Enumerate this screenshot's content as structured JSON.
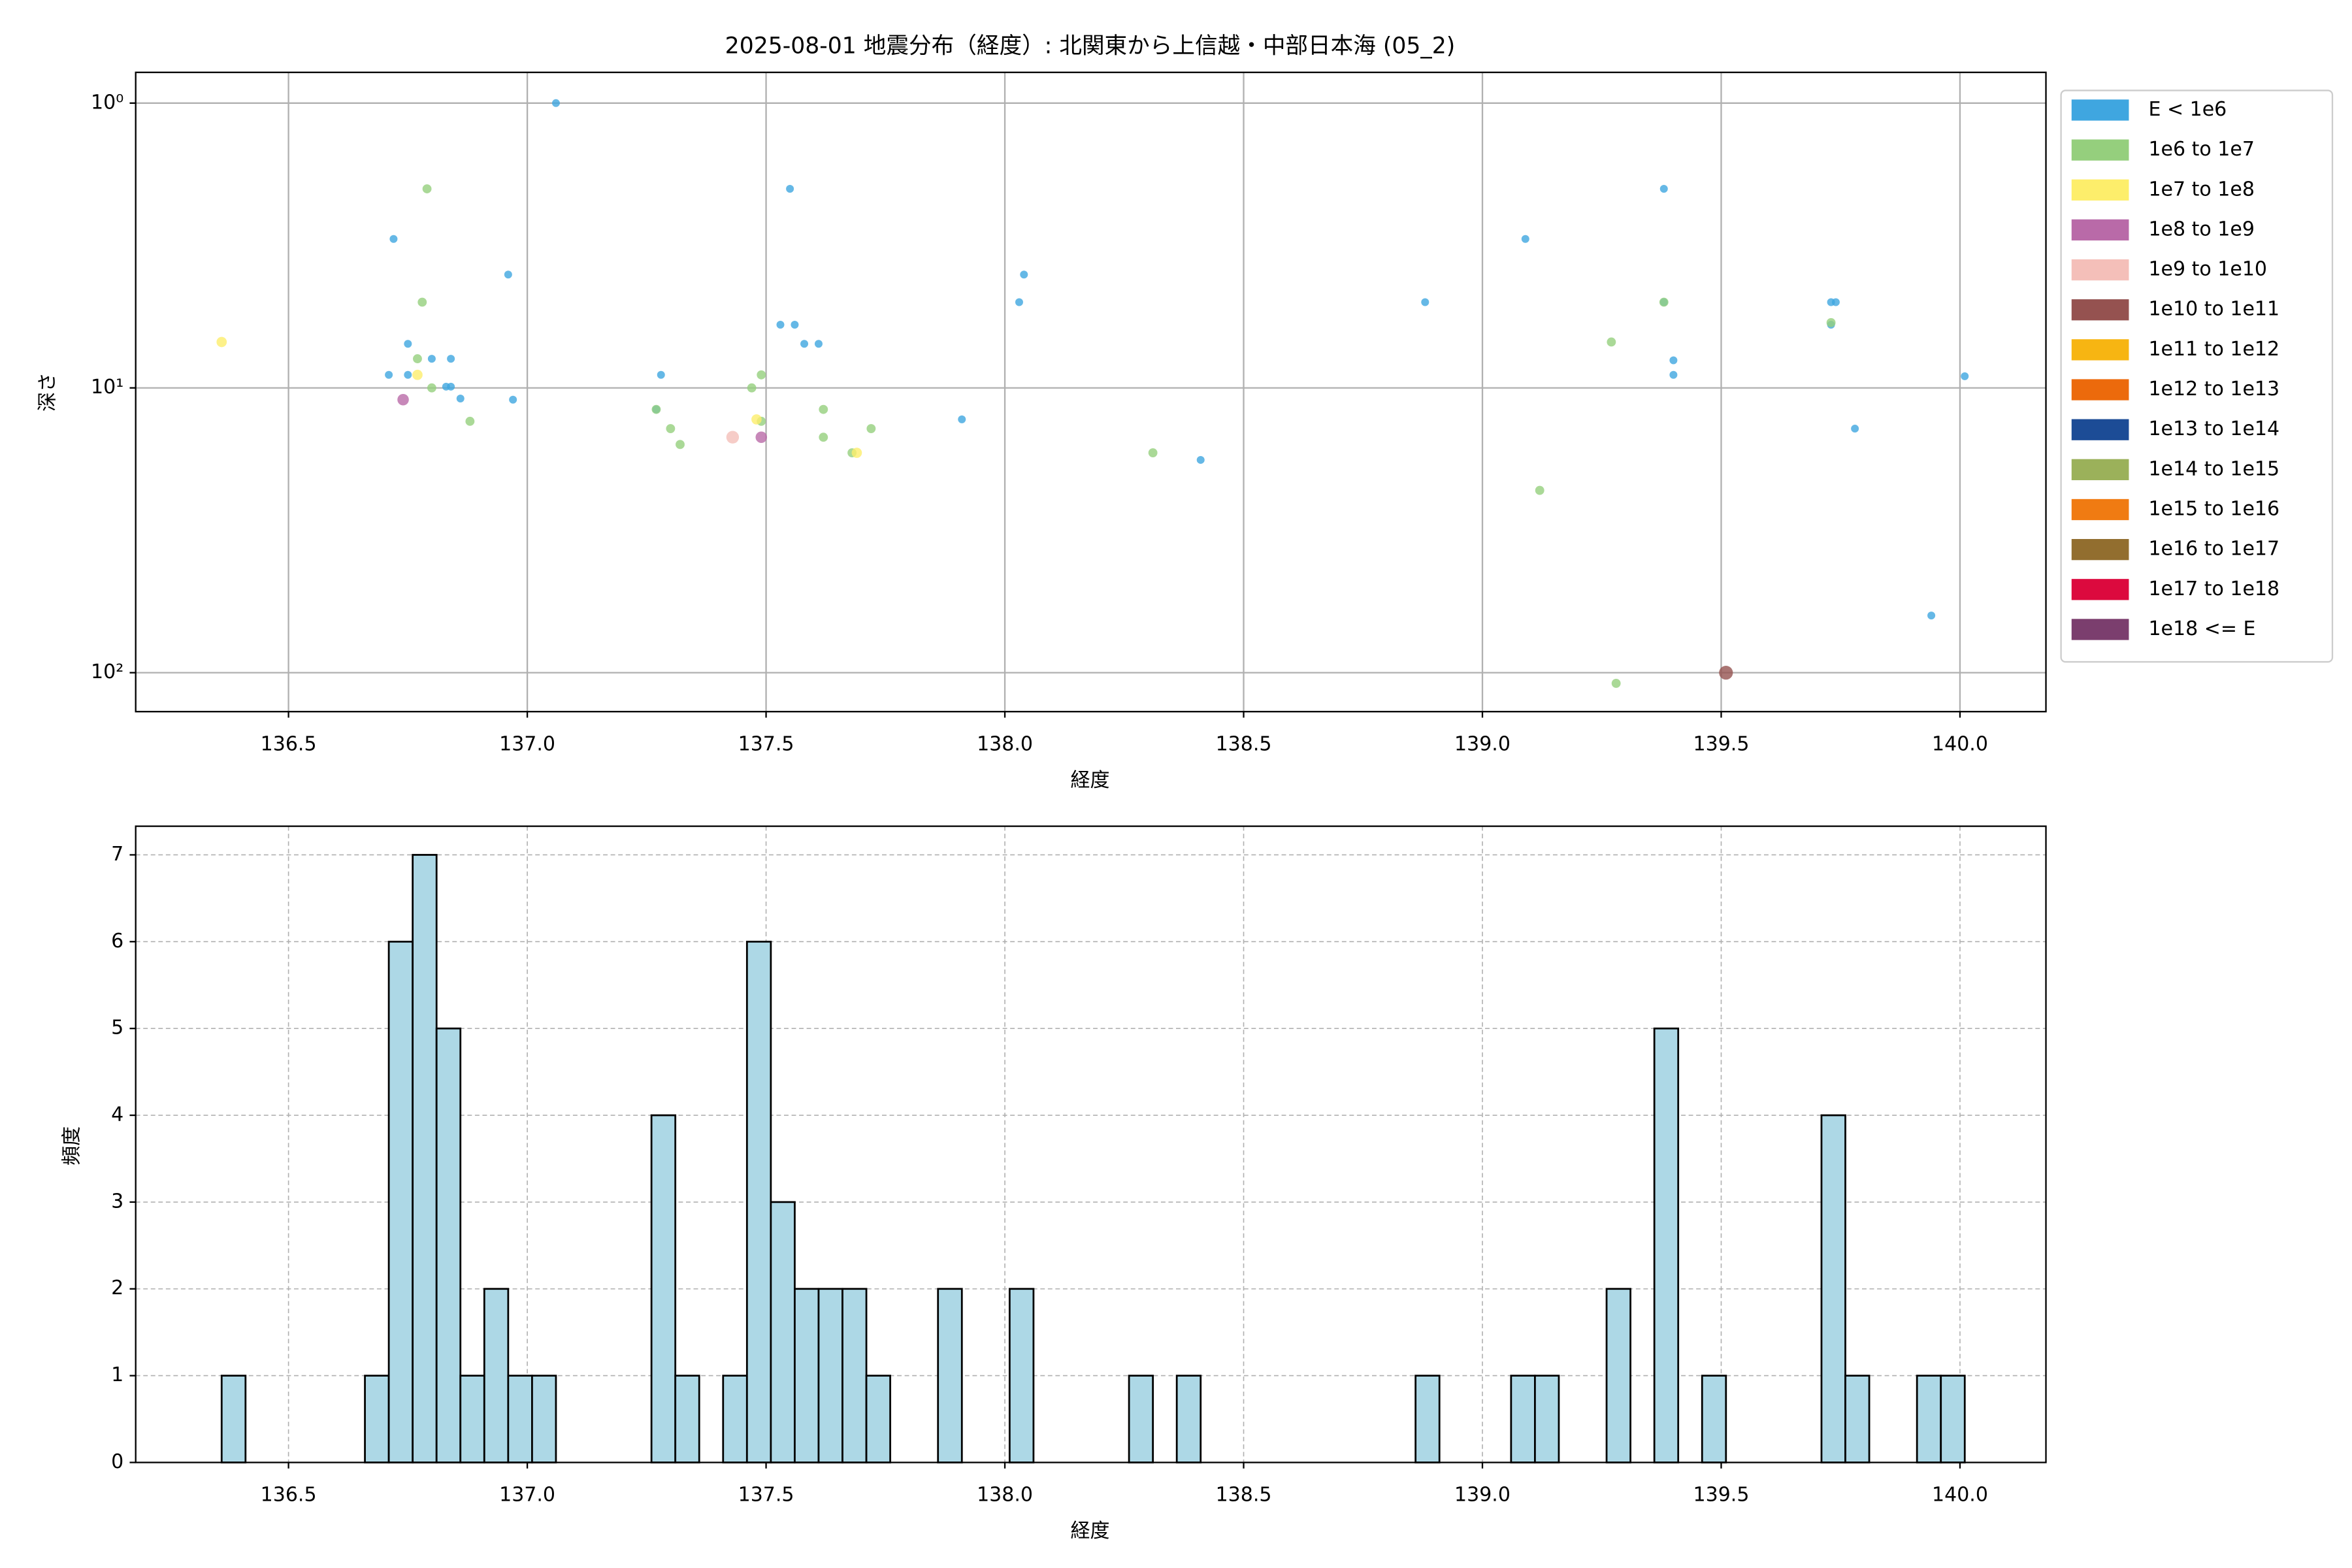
{
  "chart_data": [
    {
      "type": "scatter",
      "title": "2025-08-01 地震分布（経度）: 北関東から上信越・中部日本海 (05_2)",
      "x_label": "経度",
      "y_label": "深さ",
      "xlim": [
        136.18,
        140.18
      ],
      "ylim": [
        0.78,
        137
      ],
      "ylog": true,
      "yinvert": true,
      "grid": true,
      "legend": "outside right",
      "xticks": [
        136.5,
        {
          "value": 137,
          "label": "137.0"
        },
        137.5,
        {
          "value": 138,
          "label": "138.0"
        },
        138.5,
        {
          "value": 139,
          "label": "139.0"
        },
        139.5,
        {
          "value": 140,
          "label": "140.0"
        }
      ],
      "yticks": [
        {
          "value": 1,
          "label": "10⁰"
        },
        {
          "value": 10,
          "label": "10¹"
        },
        {
          "value": 100,
          "label": "10²"
        }
      ],
      "series": [
        {
          "name": "E < 1e6",
          "color": "#3fa6e0",
          "x": [
            137.06,
            136.72,
            136.96,
            136.75,
            136.8,
            136.84,
            136.71,
            136.75,
            136.83,
            136.84,
            136.86,
            136.97,
            137.28,
            137.27,
            137.55,
            137.53,
            137.56,
            137.58,
            137.61,
            137.91,
            138.04,
            138.03,
            138.41,
            138.88,
            139.09,
            139.38,
            139.38,
            139.4,
            139.4,
            139.73,
            139.74,
            139.73,
            139.78,
            139.94,
            140.01
          ],
          "values": [
            1.0,
            3.0,
            4.0,
            7.0,
            7.9,
            7.9,
            9.0,
            9.0,
            9.9,
            9.9,
            10.9,
            11.0,
            9.0,
            11.9,
            2.0,
            6.0,
            6.0,
            7.0,
            7.0,
            12.9,
            4.0,
            5.0,
            17.9,
            5.0,
            3.0,
            2.0,
            5.0,
            8.0,
            9.0,
            5.0,
            5.0,
            6.0,
            13.9,
            63,
            9.1
          ]
        },
        {
          "name": "1e6 to 1e7",
          "color": "#95cf7d",
          "x": [
            136.79,
            136.78,
            136.77,
            136.8,
            136.88,
            137.27,
            137.3,
            137.32,
            137.47,
            137.49,
            137.49,
            137.62,
            137.62,
            137.72,
            137.68,
            138.31,
            139.12,
            139.27,
            139.38,
            139.73,
            139.28
          ],
          "values": [
            2.0,
            5.0,
            7.9,
            10,
            13.1,
            11.9,
            13.9,
            15.8,
            10,
            9.0,
            13.1,
            11.9,
            14.9,
            13.9,
            16.9,
            16.9,
            22.9,
            6.9,
            5.0,
            5.9,
            109
          ]
        },
        {
          "name": "1e7 to 1e8",
          "color": "#fdee6b",
          "x": [
            136.36,
            136.77,
            137.48,
            137.69
          ],
          "values": [
            6.9,
            9.0,
            12.9,
            16.9
          ]
        },
        {
          "name": "1e8 to 1e9",
          "color": "#b96aa8",
          "x": [
            136.74,
            137.49
          ],
          "values": [
            11.0,
            14.9
          ]
        },
        {
          "name": "1e9 to 1e10",
          "color": "#f4bfb9",
          "x": [
            137.43
          ],
          "values": [
            14.9
          ]
        },
        {
          "name": "1e10 to 1e11",
          "color": "#955250",
          "x": [
            139.51
          ],
          "values": [
            100
          ]
        },
        {
          "name": "1e11 to 1e12",
          "color": "#f7b512",
          "x": [],
          "values": []
        },
        {
          "name": "1e12 to 1e13",
          "color": "#ec6a0c",
          "x": [],
          "values": []
        },
        {
          "name": "1e13 to 1e14",
          "color": "#1c4c96",
          "x": [],
          "values": []
        },
        {
          "name": "1e14 to 1e15",
          "color": "#9bb15a",
          "x": [],
          "values": []
        },
        {
          "name": "1e15 to 1e16",
          "color": "#f07b12",
          "x": [],
          "values": []
        },
        {
          "name": "1e16 to 1e17",
          "color": "#926e2f",
          "x": [],
          "values": []
        },
        {
          "name": "1e17 to 1e18",
          "color": "#dc0a3e",
          "x": [],
          "values": []
        },
        {
          "name": "1e18 <= E",
          "color": "#7b3e6e",
          "x": [],
          "values": []
        }
      ]
    },
    {
      "type": "histogram",
      "x_label": "経度",
      "y_label": "頻度",
      "color": "#add8e6",
      "edgecolor": "#000000",
      "grid": true,
      "xlim": [
        136.18,
        140.18
      ],
      "ylim": [
        0,
        7.33
      ],
      "xticks": [
        136.5,
        {
          "value": 137,
          "label": "137.0"
        },
        137.5,
        {
          "value": 138,
          "label": "138.0"
        },
        138.5,
        {
          "value": 139,
          "label": "139.0"
        },
        139.5,
        {
          "value": 140,
          "label": "140.0"
        }
      ],
      "yticks": [
        0,
        1,
        2,
        3,
        4,
        5,
        6,
        7
      ],
      "bins": [
        136.36,
        136.41,
        136.46,
        136.51,
        136.56,
        136.61,
        136.66,
        136.71,
        136.76,
        136.81,
        136.86,
        136.91,
        136.96,
        137.01,
        137.06,
        137.11,
        137.16,
        137.21,
        137.26,
        137.31,
        137.36,
        137.41,
        137.46,
        137.51,
        137.56,
        137.61,
        137.66,
        137.71,
        137.76,
        137.81,
        137.86,
        137.91,
        137.96,
        138.01,
        138.06,
        138.11,
        138.16,
        138.21,
        138.26,
        138.31,
        138.36,
        138.41,
        138.46,
        138.51,
        138.56,
        138.61,
        138.66,
        138.71,
        138.76,
        138.81,
        138.86,
        138.91,
        138.96,
        139.01,
        139.06,
        139.11,
        139.16,
        139.21,
        139.26,
        139.31,
        139.36,
        139.41,
        139.46,
        139.51,
        139.56,
        139.61,
        139.66,
        139.71,
        139.76,
        139.81,
        139.86,
        139.91,
        139.96,
        140.01
      ],
      "counts": [
        1,
        0,
        0,
        0,
        0,
        0,
        1,
        6,
        7,
        5,
        1,
        2,
        1,
        1,
        0,
        0,
        0,
        0,
        4,
        1,
        0,
        1,
        6,
        3,
        2,
        2,
        2,
        1,
        0,
        0,
        2,
        0,
        0,
        2,
        0,
        0,
        0,
        0,
        1,
        0,
        1,
        0,
        0,
        0,
        0,
        0,
        0,
        0,
        0,
        0,
        1,
        0,
        0,
        0,
        1,
        1,
        0,
        0,
        2,
        0,
        5,
        0,
        1,
        0,
        0,
        0,
        0,
        4,
        1,
        0,
        0,
        1,
        1
      ]
    }
  ]
}
